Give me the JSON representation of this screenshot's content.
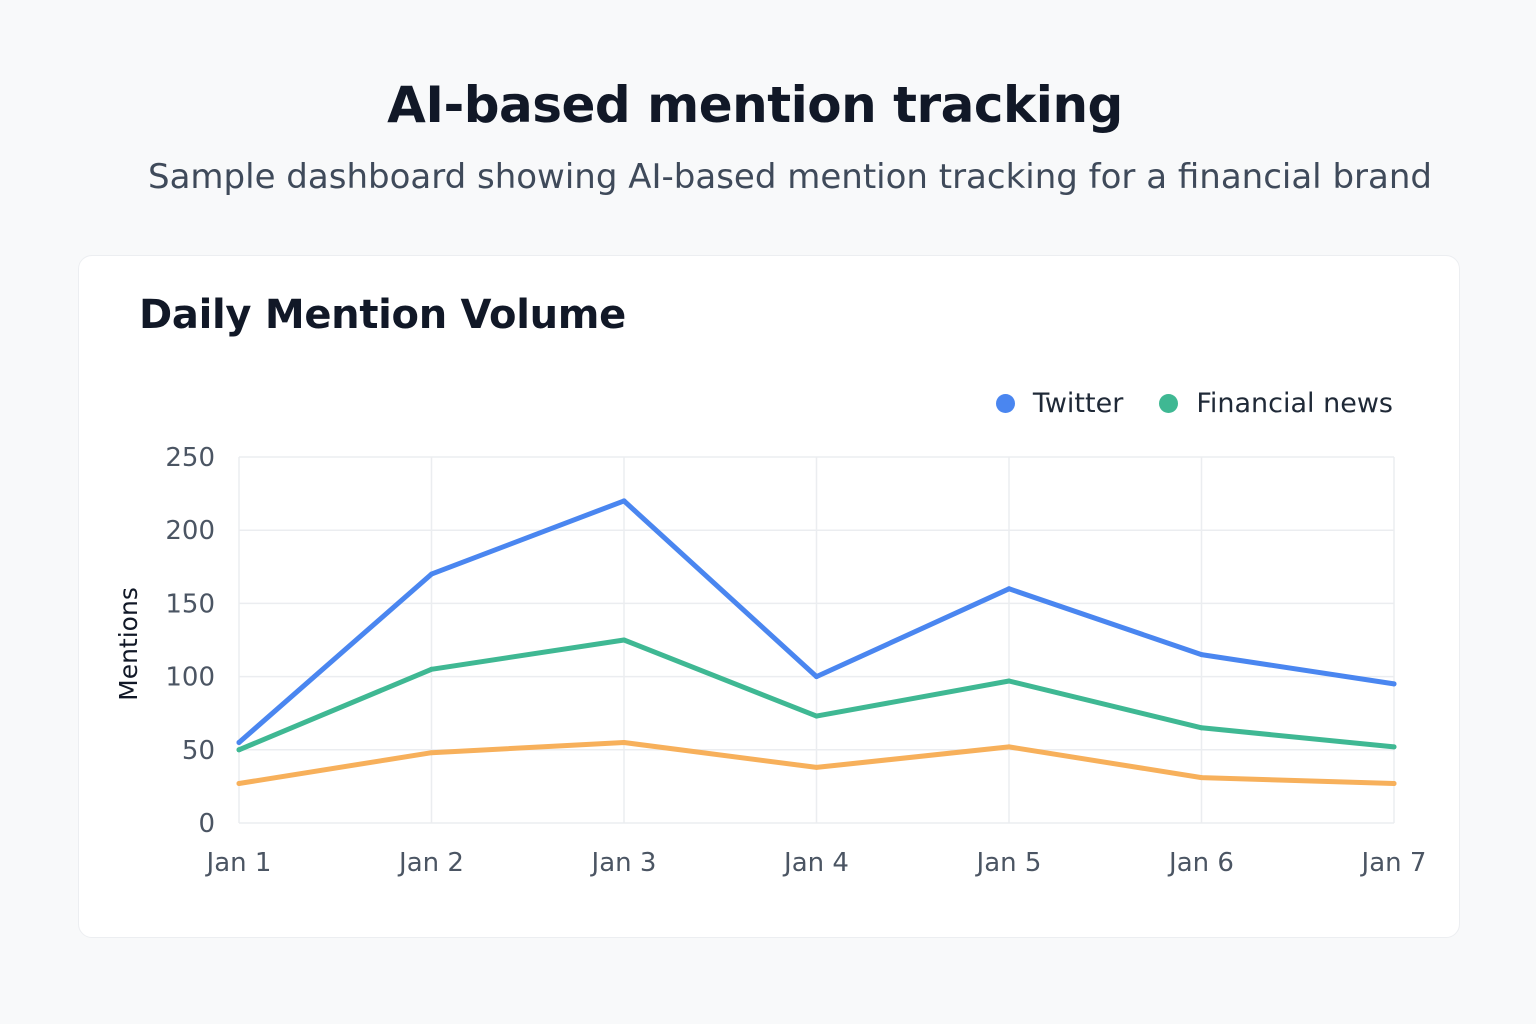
{
  "header": {
    "title": "AI-based mention tracking",
    "subtitle": "Sample dashboard showing AI-based mention tracking for a financial brand"
  },
  "card": {
    "title": "Daily Mention Volume"
  },
  "chart_data": {
    "type": "line",
    "title": "Daily Mention Volume",
    "xlabel": "",
    "ylabel": "Mentions",
    "categories": [
      "Jan 1",
      "Jan 2",
      "Jan 3",
      "Jan 4",
      "Jan 5",
      "Jan 6",
      "Jan 7"
    ],
    "ylim": [
      0,
      250
    ],
    "yticks": [
      0,
      50,
      100,
      150,
      200,
      250
    ],
    "grid": true,
    "legend_position": "top-right",
    "series": [
      {
        "name": "Twitter",
        "color": "#4a86f0",
        "values": [
          55,
          170,
          220,
          100,
          160,
          115,
          95
        ]
      },
      {
        "name": "Financial news",
        "color": "#3fb893",
        "values": [
          50,
          105,
          125,
          73,
          97,
          65,
          52
        ]
      },
      {
        "name": "",
        "color": "#f7b05b",
        "values": [
          27,
          48,
          55,
          38,
          52,
          31,
          27
        ]
      }
    ]
  }
}
